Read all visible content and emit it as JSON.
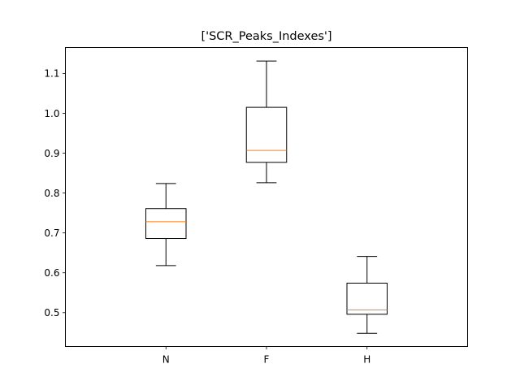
{
  "chart_data": {
    "type": "box",
    "title": "['SCR_Peaks_Indexes']",
    "xlabel": "",
    "ylabel": "",
    "categories": [
      "N",
      "F",
      "H"
    ],
    "ylim": [
      0.415,
      1.165
    ],
    "yticks": [
      0.5,
      0.6,
      0.7,
      0.8,
      0.9,
      1.0,
      1.1
    ],
    "ytick_labels": [
      "0.5",
      "0.6",
      "0.7",
      "0.8",
      "0.9",
      "1.0",
      "1.1"
    ],
    "grid": false,
    "boxes": [
      {
        "category": "N",
        "whisker_low": 0.618,
        "q1": 0.686,
        "median": 0.728,
        "q3": 0.761,
        "whisker_high": 0.824
      },
      {
        "category": "F",
        "whisker_low": 0.826,
        "q1": 0.877,
        "median": 0.907,
        "q3": 1.015,
        "whisker_high": 1.131
      },
      {
        "category": "H",
        "whisker_low": 0.448,
        "q1": 0.496,
        "median": 0.507,
        "q3": 0.574,
        "whisker_high": 0.641
      }
    ],
    "colors": {
      "box": "#000000",
      "median": "#ff7f0e"
    }
  }
}
